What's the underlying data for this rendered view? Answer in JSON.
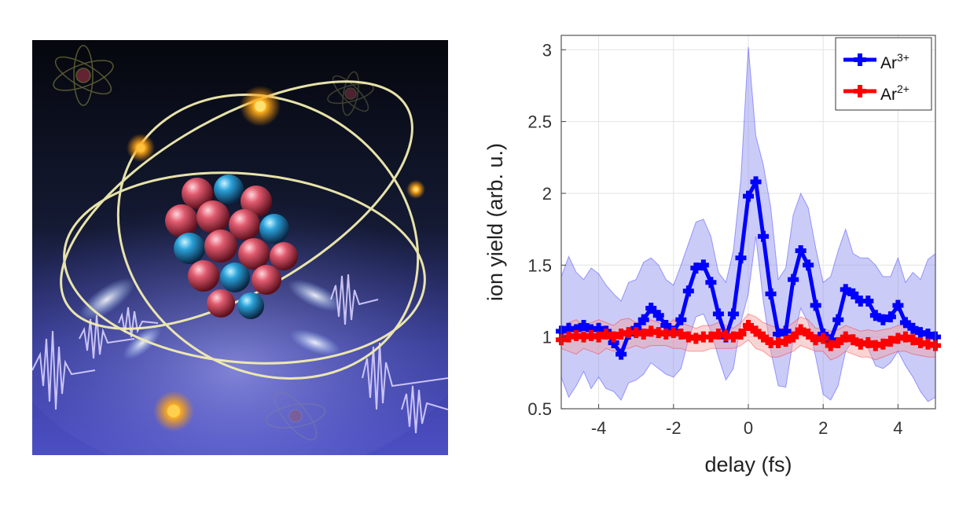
{
  "illustration": {
    "description_icon": "atom-xray-pulse-illustration"
  },
  "chart_data": {
    "type": "line",
    "xlabel": "delay (fs)",
    "ylabel": "ion yield (arb. u.)",
    "xlim": [
      -5,
      5
    ],
    "ylim": [
      0.5,
      3.1
    ],
    "xticks": [
      -4,
      -2,
      0,
      2,
      4
    ],
    "yticks": [
      0.5,
      1,
      1.5,
      2,
      2.5,
      3
    ],
    "xtick_labels": [
      "-4",
      "-2",
      "0",
      "2",
      "4"
    ],
    "ytick_labels": [
      "0.5",
      "1",
      "1.5",
      "2",
      "2.5",
      "3"
    ],
    "grid": true,
    "legend_position": "top-right",
    "x": [
      -5.0,
      -4.8,
      -4.6,
      -4.4,
      -4.2,
      -4.0,
      -3.8,
      -3.6,
      -3.4,
      -3.2,
      -3.0,
      -2.8,
      -2.6,
      -2.4,
      -2.2,
      -2.0,
      -1.8,
      -1.6,
      -1.4,
      -1.2,
      -1.0,
      -0.8,
      -0.6,
      -0.4,
      -0.2,
      0.0,
      0.2,
      0.4,
      0.6,
      0.8,
      1.0,
      1.2,
      1.4,
      1.6,
      1.8,
      2.0,
      2.2,
      2.4,
      2.6,
      2.8,
      3.0,
      3.2,
      3.4,
      3.6,
      3.8,
      4.0,
      4.2,
      4.4,
      4.6,
      4.8,
      5.0
    ],
    "series": [
      {
        "name": "Ar",
        "superscript": "3+",
        "color": "#0000ff",
        "band_color": "#8c8cf0",
        "values": [
          1.04,
          1.06,
          1.05,
          1.08,
          1.05,
          1.06,
          1.04,
          0.96,
          0.88,
          1.02,
          1.06,
          1.12,
          1.2,
          1.15,
          1.08,
          1.04,
          1.12,
          1.32,
          1.48,
          1.5,
          1.38,
          1.16,
          1.0,
          1.16,
          1.55,
          1.98,
          2.08,
          1.7,
          1.3,
          1.02,
          1.04,
          1.4,
          1.6,
          1.5,
          1.22,
          1.02,
          0.98,
          1.12,
          1.33,
          1.3,
          1.25,
          1.25,
          1.15,
          1.12,
          1.14,
          1.22,
          1.1,
          1.06,
          1.03,
          1.02,
          1.0
        ],
        "upper": [
          1.42,
          1.56,
          1.45,
          1.4,
          1.48,
          1.44,
          1.36,
          1.3,
          1.25,
          1.38,
          1.4,
          1.52,
          1.55,
          1.5,
          1.4,
          1.36,
          1.5,
          1.65,
          1.8,
          1.82,
          1.7,
          1.45,
          1.38,
          1.6,
          2.1,
          3.02,
          2.4,
          2.2,
          1.9,
          1.4,
          1.48,
          1.85,
          2.0,
          1.9,
          1.62,
          1.38,
          1.42,
          1.6,
          1.75,
          1.58,
          1.55,
          1.55,
          1.5,
          1.42,
          1.42,
          1.55,
          1.38,
          1.45,
          1.4,
          1.54,
          1.58
        ],
        "lower": [
          0.72,
          0.58,
          0.66,
          0.76,
          0.64,
          0.72,
          0.64,
          0.62,
          0.56,
          0.68,
          0.7,
          0.74,
          0.82,
          0.78,
          0.74,
          0.72,
          0.78,
          0.98,
          1.14,
          1.16,
          1.04,
          0.86,
          0.7,
          0.78,
          1.1,
          1.3,
          1.7,
          1.25,
          0.9,
          0.66,
          0.65,
          0.98,
          1.2,
          1.1,
          0.86,
          0.6,
          0.56,
          0.66,
          0.9,
          0.98,
          0.95,
          0.92,
          0.8,
          0.78,
          0.82,
          0.9,
          0.8,
          0.72,
          0.62,
          0.55,
          0.58
        ]
      },
      {
        "name": "Ar",
        "superscript": "2+",
        "color": "#ff0000",
        "band_color": "#f2a0a0",
        "values": [
          0.98,
          1.0,
          1.01,
          1.0,
          1.01,
          1.0,
          1.02,
          1.0,
          1.02,
          1.03,
          1.03,
          1.02,
          1.04,
          1.03,
          1.02,
          1.03,
          1.02,
          1.0,
          0.99,
          1.0,
          1.0,
          1.02,
          1.01,
          1.0,
          1.02,
          1.08,
          1.04,
          1.0,
          0.96,
          0.96,
          0.97,
          1.0,
          1.05,
          1.02,
          0.98,
          0.99,
          0.94,
          0.96,
          1.0,
          0.98,
          0.95,
          0.96,
          0.94,
          0.95,
          0.97,
          0.99,
          1.0,
          0.98,
          0.96,
          0.95,
          0.94
        ],
        "upper": [
          1.05,
          1.1,
          1.12,
          1.08,
          1.1,
          1.12,
          1.1,
          1.08,
          1.12,
          1.13,
          1.1,
          1.1,
          1.12,
          1.1,
          1.08,
          1.12,
          1.1,
          1.08,
          1.06,
          1.08,
          1.08,
          1.1,
          1.08,
          1.06,
          1.1,
          1.16,
          1.14,
          1.1,
          1.08,
          1.06,
          1.06,
          1.1,
          1.14,
          1.12,
          1.06,
          1.06,
          1.04,
          1.05,
          1.08,
          1.06,
          1.04,
          1.05,
          1.04,
          1.05,
          1.06,
          1.08,
          1.08,
          1.06,
          1.04,
          1.04,
          1.02
        ],
        "lower": [
          0.92,
          0.9,
          0.88,
          0.92,
          0.9,
          0.88,
          0.92,
          0.9,
          0.92,
          0.92,
          0.94,
          0.92,
          0.94,
          0.94,
          0.94,
          0.92,
          0.92,
          0.9,
          0.9,
          0.9,
          0.92,
          0.92,
          0.92,
          0.92,
          0.94,
          0.98,
          0.92,
          0.9,
          0.86,
          0.86,
          0.88,
          0.9,
          0.94,
          0.92,
          0.9,
          0.9,
          0.84,
          0.86,
          0.9,
          0.88,
          0.86,
          0.86,
          0.84,
          0.86,
          0.88,
          0.9,
          0.9,
          0.88,
          0.87,
          0.86,
          0.86
        ]
      }
    ]
  }
}
